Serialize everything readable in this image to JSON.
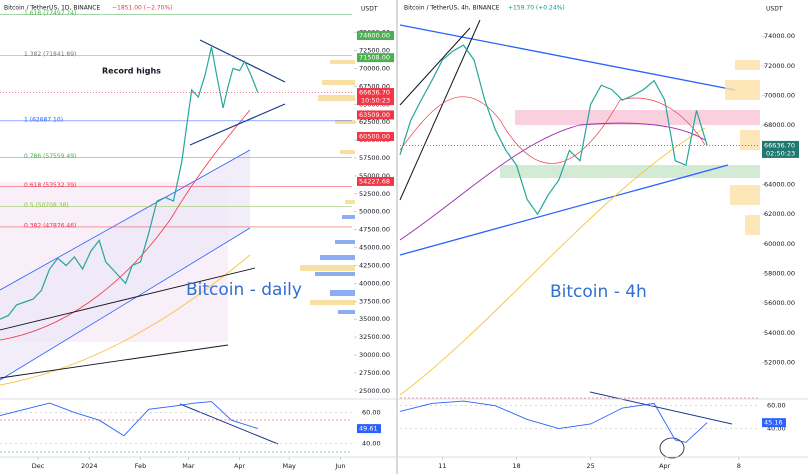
{
  "chart_data": [
    {
      "type": "line",
      "title": "Bitcoin / TetherUS, 1D, BINANCE",
      "change": "−1851.00 (−2.70%)",
      "change_color": "#f23645",
      "currency": "USDT",
      "annotation": "Record highs",
      "watermark": "Bitcoin - daily",
      "color": "#26a69a",
      "x": [
        0,
        5,
        10,
        15,
        20,
        25,
        30,
        35,
        40,
        45,
        50,
        55,
        60,
        64,
        70,
        76,
        80,
        85,
        90,
        95,
        100,
        105,
        110,
        113,
        116,
        120,
        124,
        128,
        132,
        135,
        138,
        141,
        145,
        148,
        152,
        156
      ],
      "values": [
        35000,
        35500,
        37000,
        37400,
        37800,
        39000,
        42000,
        43500,
        42500,
        43700,
        42000,
        44500,
        46000,
        43000,
        41500,
        40000,
        42500,
        43000,
        47000,
        51500,
        52000,
        51500,
        57000,
        62000,
        67000,
        66000,
        69000,
        73000,
        68000,
        64500,
        67500,
        70000,
        69700,
        71000,
        69000,
        66636.7
      ],
      "xlim": [
        0,
        213
      ],
      "ylim": [
        24000,
        77600
      ],
      "xticks": [
        {
          "value": 23,
          "label": "Dec"
        },
        {
          "value": 54,
          "label": "2024"
        },
        {
          "value": 85,
          "label": "Feb"
        },
        {
          "value": 114,
          "label": "Mar"
        },
        {
          "value": 145,
          "label": "Apr"
        },
        {
          "value": 175,
          "label": "May"
        },
        {
          "value": 206,
          "label": "Jun"
        }
      ],
      "yticks": [
        {
          "value": 75000,
          "label": "75000.00"
        },
        {
          "value": 72500,
          "label": "72500.00"
        },
        {
          "value": 70000,
          "label": "70000.00"
        },
        {
          "value": 67500,
          "label": "67500.00"
        },
        {
          "value": 65000,
          "label": "65000.00"
        },
        {
          "value": 62500,
          "label": "62500.00"
        },
        {
          "value": 60000,
          "label": "60000.00"
        },
        {
          "value": 57500,
          "label": "57500.00"
        },
        {
          "value": 55000,
          "label": "55000.00"
        },
        {
          "value": 52500,
          "label": "52500.00"
        },
        {
          "value": 50000,
          "label": "50000.00"
        },
        {
          "value": 47500,
          "label": "47500.00"
        },
        {
          "value": 45000,
          "label": "45000.00"
        },
        {
          "value": 42500,
          "label": "42500.00"
        },
        {
          "value": 40000,
          "label": "40000.00"
        },
        {
          "value": 37500,
          "label": "37500.00"
        },
        {
          "value": 35000,
          "label": "35000.00"
        },
        {
          "value": 32500,
          "label": "32500.00"
        },
        {
          "value": 30000,
          "label": "30000.00"
        },
        {
          "value": 27500,
          "label": "27500.00"
        },
        {
          "value": 25000,
          "label": "25000.00"
        }
      ],
      "levels": [
        {
          "value": 77497.74,
          "label": "1.618 (77497.74)",
          "color": "#4caf50"
        },
        {
          "value": 71841.89,
          "label": "1.382 (71841.89)",
          "color": "#787b86"
        },
        {
          "value": 62687.1,
          "label": "1 (62687.10)",
          "color": "#2962ff"
        },
        {
          "value": 57559.49,
          "label": "0.786 (57559.49)",
          "color": "#4caf50"
        },
        {
          "value": 53532.39,
          "label": "0.618 (53532.39)",
          "color": "#f23645"
        },
        {
          "value": 50708.38,
          "label": "0.5 (50708.38)",
          "color": "#8bc34a"
        },
        {
          "value": 47876.46,
          "label": "0.382 (47876.46)",
          "color": "#f23645"
        }
      ],
      "price_labels": [
        {
          "value": 74600,
          "label": "74600.00",
          "color": "#4caf50"
        },
        {
          "value": 71508,
          "label": "71508.00",
          "color": "#4caf50"
        },
        {
          "value": 63509,
          "label": "63509.00",
          "color": "#f23645"
        },
        {
          "value": 60500,
          "label": "60500.00",
          "color": "#f23645"
        },
        {
          "value": 54227.68,
          "label": "54227.68",
          "color": "#f23645"
        }
      ],
      "last_price": {
        "value": 66636.7,
        "label": "66636.70",
        "time": "10:50:23",
        "color": "#f23645"
      },
      "rsi": {
        "x": [
          0,
          15,
          30,
          45,
          60,
          75,
          90,
          105,
          118,
          128,
          140,
          156
        ],
        "values": [
          58,
          62,
          66,
          60,
          55,
          45,
          62,
          64,
          66,
          67,
          55,
          49.61
        ],
        "ylim": [
          32,
          68
        ],
        "yticks": [
          {
            "value": 60,
            "label": "60.00"
          },
          {
            "value": 40,
            "label": "40.00"
          }
        ],
        "color": "#2962ff"
      }
    },
    {
      "type": "line",
      "title": "Bitcoin / TetherUS, 4h, BINANCE",
      "change": "+159.70 (+0.24%)",
      "change_color": "#089981",
      "currency": "USDT",
      "watermark": "Bitcoin - 4h",
      "color": "#26a69a",
      "x": [
        0,
        1,
        2,
        3,
        4,
        5,
        6,
        7,
        8,
        9,
        10,
        11,
        12,
        13,
        14,
        15,
        16,
        17,
        18,
        19,
        20,
        21,
        22,
        23,
        24,
        25,
        26,
        27,
        28,
        29
      ],
      "values": [
        66000,
        68300,
        69700,
        71000,
        72400,
        73000,
        73400,
        72400,
        69700,
        67700,
        66300,
        65300,
        63000,
        62000,
        63300,
        64300,
        66300,
        65600,
        69400,
        70700,
        70400,
        69700,
        70000,
        70400,
        71000,
        69700,
        65600,
        65300,
        69000,
        66636.7
      ],
      "xlim": [
        0,
        34
      ],
      "ylim": [
        49600,
        75500
      ],
      "xticks": [
        {
          "value": 4,
          "label": "11"
        },
        {
          "value": 11,
          "label": "18"
        },
        {
          "value": 18,
          "label": "25"
        },
        {
          "value": 25,
          "label": "Apr"
        },
        {
          "value": 32,
          "label": "8"
        }
      ],
      "yticks": [
        {
          "value": 74000,
          "label": "74000.00"
        },
        {
          "value": 72000,
          "label": "72000.00"
        },
        {
          "value": 70000,
          "label": "70000.00"
        },
        {
          "value": 68000,
          "label": "68000.00"
        },
        {
          "value": 64000,
          "label": "64000.00"
        },
        {
          "value": 62000,
          "label": "62000.00"
        },
        {
          "value": 60000,
          "label": "60000.00"
        },
        {
          "value": 58000,
          "label": "58000.00"
        },
        {
          "value": 56000,
          "label": "56000.00"
        },
        {
          "value": 54000,
          "label": "54000.00"
        },
        {
          "value": 52000,
          "label": "52000.00"
        }
      ],
      "last_price": {
        "value": 66636.7,
        "label": "66636.70",
        "time": "02:50:23",
        "color": "#22776f"
      },
      "rsi": {
        "x": [
          0,
          3,
          6,
          9,
          12,
          15,
          18,
          21,
          24,
          26,
          27,
          29
        ],
        "values": [
          55,
          62,
          64,
          60,
          48,
          40,
          44,
          58,
          62,
          30,
          28,
          45.16
        ],
        "ylim": [
          16,
          65
        ],
        "yticks": [
          {
            "value": 60,
            "label": "60.00"
          },
          {
            "value": 40,
            "label": "40.00"
          }
        ],
        "color": "#2962ff"
      }
    }
  ]
}
